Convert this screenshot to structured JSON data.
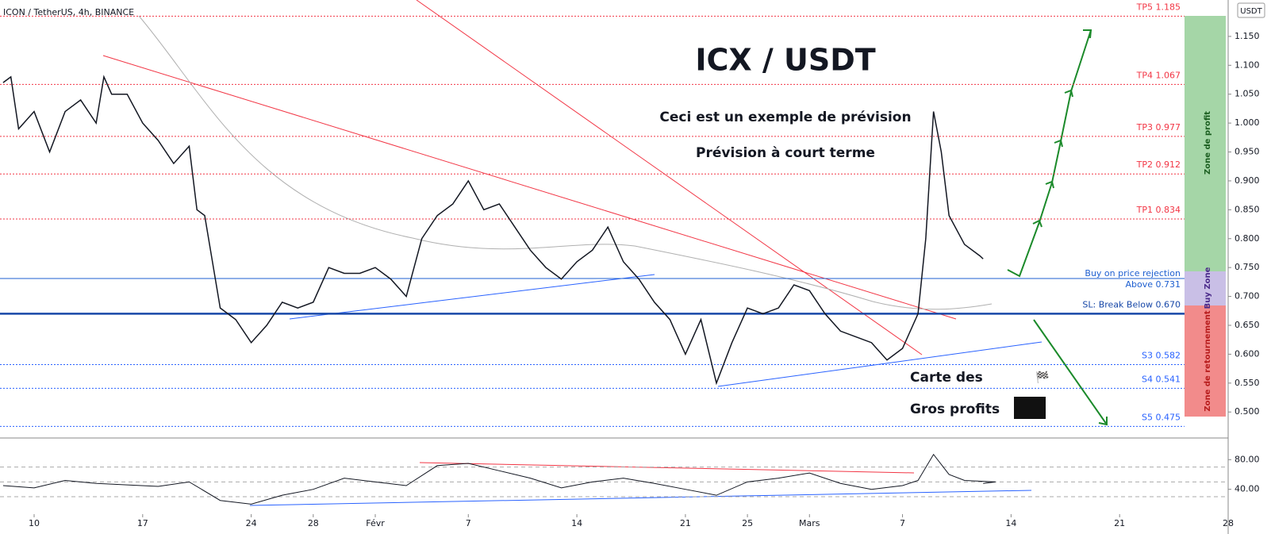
{
  "chart_data": {
    "type": "line",
    "title": "ICX / USDT",
    "source": "ICON / TetherUS, 4h, BINANCE",
    "currency": "USDT",
    "annotations": [
      "Ceci est un exemple de prévision",
      "Prévision à court terme",
      "Carte des",
      "Gros profits"
    ],
    "zones": [
      "Zone de profit",
      "Buy Zone",
      "Zone de retournement"
    ],
    "series": [
      {
        "name": "ICX/USDT",
        "color": "#131722",
        "x": [
          -2,
          -1.5,
          -1,
          0,
          1,
          2,
          3,
          4,
          4.5,
          5,
          6,
          7,
          8,
          9,
          10,
          10.5,
          11,
          12,
          13,
          14,
          15,
          16,
          17,
          18,
          19,
          20,
          21,
          22,
          23,
          24,
          25,
          26,
          27,
          28,
          29,
          30,
          31,
          32,
          33,
          34,
          35,
          36,
          37,
          38,
          39,
          40,
          41,
          42,
          43,
          44,
          45,
          46,
          47,
          48,
          49,
          50,
          51,
          52,
          53,
          54,
          55,
          56,
          57,
          57.5,
          58,
          58.5,
          59,
          60,
          61,
          61.2
        ],
        "values": [
          1.07,
          1.08,
          0.99,
          1.02,
          0.95,
          1.02,
          1.04,
          1.0,
          1.08,
          1.05,
          1.05,
          1.0,
          0.97,
          0.93,
          0.96,
          0.85,
          0.84,
          0.68,
          0.66,
          0.62,
          0.65,
          0.69,
          0.68,
          0.69,
          0.75,
          0.74,
          0.74,
          0.75,
          0.73,
          0.7,
          0.8,
          0.84,
          0.86,
          0.9,
          0.85,
          0.86,
          0.82,
          0.78,
          0.75,
          0.73,
          0.76,
          0.78,
          0.82,
          0.76,
          0.73,
          0.69,
          0.66,
          0.6,
          0.66,
          0.55,
          0.62,
          0.68,
          0.67,
          0.68,
          0.72,
          0.71,
          0.67,
          0.64,
          0.63,
          0.62,
          0.59,
          0.61,
          0.67,
          0.8,
          1.02,
          0.95,
          0.84,
          0.79,
          0.77,
          0.765
        ]
      }
    ],
    "rsi": {
      "color": "#131722",
      "x": [
        -2,
        0,
        2,
        4,
        6,
        8,
        10,
        12,
        14,
        16,
        18,
        20,
        22,
        24,
        26,
        28,
        30,
        32,
        34,
        36,
        38,
        40,
        42,
        44,
        46,
        48,
        50,
        52,
        54,
        56,
        57,
        58,
        59,
        60,
        62,
        61.2
      ],
      "values": [
        45,
        42,
        52,
        48,
        46,
        44,
        50,
        25,
        20,
        32,
        40,
        55,
        50,
        45,
        72,
        75,
        65,
        55,
        42,
        50,
        55,
        48,
        40,
        32,
        50,
        55,
        62,
        48,
        40,
        45,
        52,
        87,
        60,
        52,
        50,
        48
      ],
      "ylim": [
        6.5,
        109.2
      ],
      "yticks": [
        {
          "value": 40,
          "label": "40.00"
        },
        {
          "value": 80,
          "label": "80.00"
        }
      ],
      "levels": [
        30,
        50,
        70
      ]
    },
    "levels": [
      {
        "label": "TP5 1.185",
        "value": 1.185,
        "color": "#f23645",
        "style": "dotted"
      },
      {
        "label": "TP4 1.067",
        "value": 1.067,
        "color": "#f23645",
        "style": "dotted"
      },
      {
        "label": "TP3 0.977",
        "value": 0.977,
        "color": "#f23645",
        "style": "dotted"
      },
      {
        "label": "TP2 0.912",
        "value": 0.912,
        "color": "#f23645",
        "style": "dotted"
      },
      {
        "label": "TP1 0.834",
        "value": 0.834,
        "color": "#f23645",
        "style": "dotted"
      },
      {
        "label": "Above 0.731",
        "extra": "Buy on price rejection",
        "value": 0.731,
        "color": "#1e5fd0",
        "style": "solid"
      },
      {
        "label": "SL: Break Below 0.670",
        "value": 0.67,
        "color": "#1848a8",
        "style": "thick"
      },
      {
        "label": "S3 0.582",
        "value": 0.582,
        "color": "#2962ff",
        "style": "dotted"
      },
      {
        "label": "S4 0.541",
        "value": 0.541,
        "color": "#2962ff",
        "style": "dotted"
      },
      {
        "label": "S5 0.475",
        "value": 0.475,
        "color": "#2962ff",
        "style": "dotted"
      }
    ],
    "xlim": [
      -2.2,
      77
    ],
    "xticks": [
      {
        "value": 0,
        "label": "10"
      },
      {
        "value": 7,
        "label": "17"
      },
      {
        "value": 14,
        "label": "24"
      },
      {
        "value": 18,
        "label": "28"
      },
      {
        "value": 22,
        "label": "Févr"
      },
      {
        "value": 28,
        "label": "7"
      },
      {
        "value": 35,
        "label": "14"
      },
      {
        "value": 42,
        "label": "21"
      },
      {
        "value": 46,
        "label": "25"
      },
      {
        "value": 50,
        "label": "Mars"
      },
      {
        "value": 56,
        "label": "7"
      },
      {
        "value": 63,
        "label": "14"
      },
      {
        "value": 70,
        "label": "21"
      },
      {
        "value": 77,
        "label": "28"
      }
    ],
    "ylim": [
      0.455,
      1.213
    ],
    "yticks": [
      {
        "value": 0.5,
        "label": "0.500"
      },
      {
        "value": 0.55,
        "label": "0.550"
      },
      {
        "value": 0.6,
        "label": "0.600"
      },
      {
        "value": 0.65,
        "label": "0.650"
      },
      {
        "value": 0.7,
        "label": "0.700"
      },
      {
        "value": 0.75,
        "label": "0.750"
      },
      {
        "value": 0.8,
        "label": "0.800"
      },
      {
        "value": 0.85,
        "label": "0.850"
      },
      {
        "value": 0.9,
        "label": "0.900"
      },
      {
        "value": 0.95,
        "label": "0.950"
      },
      {
        "value": 1.0,
        "label": "1.000"
      },
      {
        "value": 1.05,
        "label": "1.050"
      },
      {
        "value": 1.1,
        "label": "1.100"
      },
      {
        "value": 1.15,
        "label": "1.150"
      }
    ]
  }
}
